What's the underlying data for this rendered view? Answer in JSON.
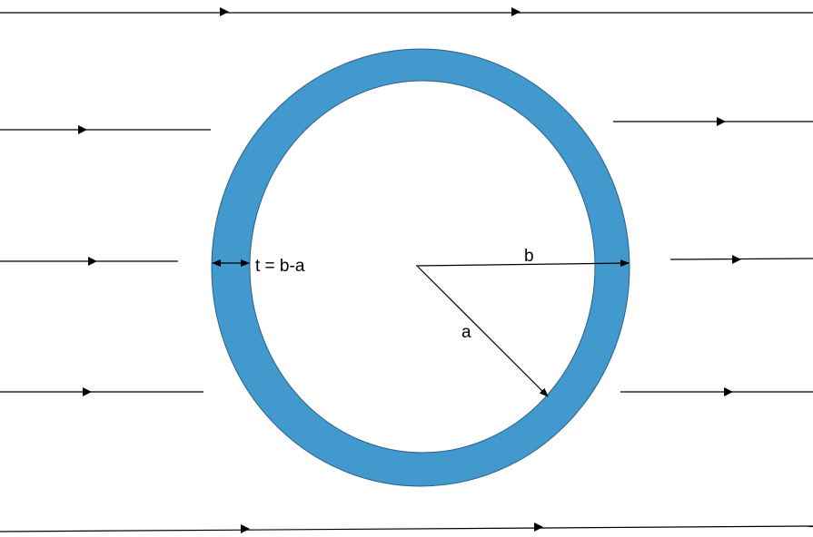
{
  "labels": {
    "thickness": "t = b-a",
    "outer_radius": "b",
    "inner_radius": "a"
  },
  "colors": {
    "ring_fill": "#4199CE",
    "ring_stroke": "#2F5F86",
    "inner_fill": "#FFFFFF",
    "line": "#000000"
  }
}
